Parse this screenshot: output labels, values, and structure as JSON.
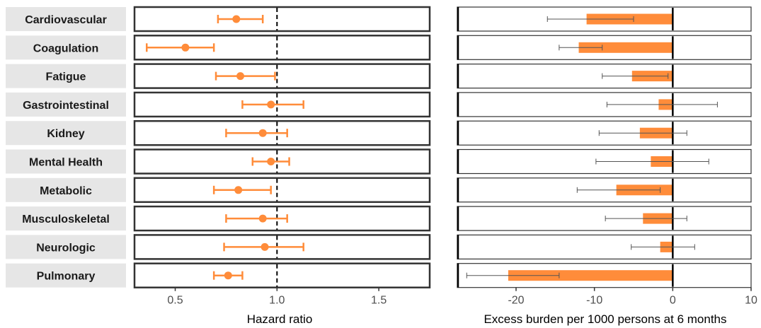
{
  "chart_data": [
    {
      "type": "forest",
      "xlabel": "Hazard ratio",
      "xlim": [
        0.3,
        1.75
      ],
      "xticks": [
        0.5,
        1.0,
        1.5
      ],
      "xtick_labels": [
        "0.5",
        "1.0",
        "1.5"
      ],
      "reference_line": 1.0,
      "color": "#ff8c3a",
      "categories": [
        "Cardiovascular",
        "Coagulation",
        "Fatigue",
        "Gastrointestinal",
        "Kidney",
        "Mental Health",
        "Metabolic",
        "Musculoskeletal",
        "Neurologic",
        "Pulmonary"
      ],
      "estimate": [
        0.8,
        0.55,
        0.82,
        0.97,
        0.93,
        0.97,
        0.81,
        0.93,
        0.94,
        0.76
      ],
      "lower": [
        0.71,
        0.36,
        0.7,
        0.83,
        0.75,
        0.88,
        0.69,
        0.75,
        0.74,
        0.69
      ],
      "upper": [
        0.93,
        0.69,
        0.99,
        1.13,
        1.05,
        1.06,
        0.97,
        1.05,
        1.13,
        0.83
      ]
    },
    {
      "type": "bar",
      "orientation": "horizontal",
      "xlabel": "Excess burden per 1000 persons at 6 months",
      "xlim": [
        -27.5,
        10
      ],
      "xticks": [
        -20,
        -10,
        0,
        10
      ],
      "xtick_labels": [
        "-20",
        "-10",
        "0",
        "10"
      ],
      "reference_line": 0,
      "color": "#ff8c3a",
      "error_color": "#555555",
      "categories": [
        "Cardiovascular",
        "Coagulation",
        "Fatigue",
        "Gastrointestinal",
        "Kidney",
        "Mental Health",
        "Metabolic",
        "Musculoskeletal",
        "Neurologic",
        "Pulmonary"
      ],
      "values": [
        -11.0,
        -12.0,
        -5.2,
        -1.8,
        -4.2,
        -2.8,
        -7.2,
        -3.8,
        -1.6,
        -21.0
      ],
      "lower": [
        -16.0,
        -14.5,
        -9.0,
        -8.4,
        -9.4,
        -9.8,
        -12.2,
        -8.6,
        -5.3,
        -26.3
      ],
      "upper": [
        -5.0,
        -9.0,
        -0.6,
        5.7,
        1.8,
        4.6,
        -1.6,
        1.8,
        2.8,
        -14.5
      ]
    }
  ]
}
